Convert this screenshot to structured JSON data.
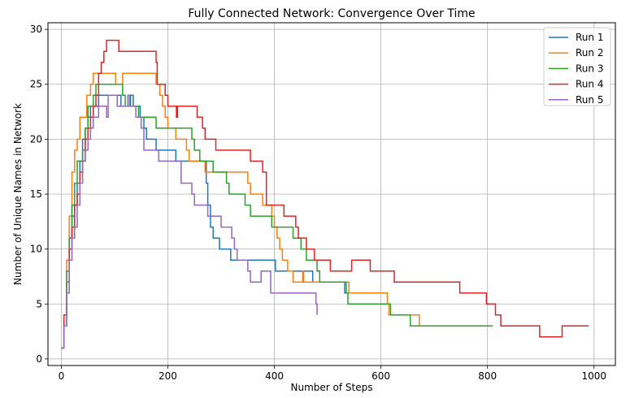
{
  "chart_data": {
    "type": "line",
    "title": "Fully Connected Network: Convergence Over Time",
    "xlabel": "Number of Steps",
    "ylabel": "Number of Unique Names in Network",
    "xlim": [
      -25,
      1040
    ],
    "ylim": [
      -0.6,
      30.6
    ],
    "xticks": [
      0,
      200,
      400,
      600,
      800,
      1000
    ],
    "yticks": [
      0,
      5,
      10,
      15,
      20,
      25,
      30
    ],
    "grid": true,
    "legend_position": "top-right",
    "series": [
      {
        "name": "Run 1",
        "color": "#1f77b4",
        "points": [
          [
            0,
            1
          ],
          [
            5,
            3
          ],
          [
            10,
            7
          ],
          [
            15,
            11
          ],
          [
            20,
            13
          ],
          [
            25,
            14
          ],
          [
            30,
            16
          ],
          [
            35,
            18
          ],
          [
            40,
            20
          ],
          [
            45,
            21
          ],
          [
            50,
            22
          ],
          [
            55,
            23
          ],
          [
            65,
            23
          ],
          [
            70,
            24
          ],
          [
            110,
            24
          ],
          [
            112,
            23
          ],
          [
            125,
            23
          ],
          [
            130,
            24
          ],
          [
            135,
            23
          ],
          [
            145,
            23
          ],
          [
            148,
            22
          ],
          [
            155,
            21
          ],
          [
            160,
            20
          ],
          [
            175,
            20
          ],
          [
            178,
            19
          ],
          [
            210,
            19
          ],
          [
            215,
            18
          ],
          [
            270,
            18
          ],
          [
            272,
            16
          ],
          [
            275,
            14
          ],
          [
            280,
            12
          ],
          [
            285,
            11
          ],
          [
            295,
            11
          ],
          [
            297,
            10
          ],
          [
            315,
            10
          ],
          [
            318,
            9
          ],
          [
            400,
            9
          ],
          [
            402,
            8
          ],
          [
            470,
            8
          ],
          [
            472,
            7
          ],
          [
            530,
            7
          ],
          [
            532,
            6
          ],
          [
            540,
            6
          ]
        ]
      },
      {
        "name": "Run 2",
        "color": "#ff7f0e",
        "points": [
          [
            0,
            1
          ],
          [
            5,
            4
          ],
          [
            10,
            9
          ],
          [
            15,
            13
          ],
          [
            20,
            17
          ],
          [
            25,
            19
          ],
          [
            30,
            20
          ],
          [
            35,
            22
          ],
          [
            45,
            22
          ],
          [
            48,
            24
          ],
          [
            55,
            25
          ],
          [
            60,
            26
          ],
          [
            100,
            26
          ],
          [
            102,
            25
          ],
          [
            110,
            25
          ],
          [
            115,
            26
          ],
          [
            175,
            26
          ],
          [
            178,
            25
          ],
          [
            185,
            24
          ],
          [
            190,
            23
          ],
          [
            195,
            22
          ],
          [
            200,
            21
          ],
          [
            210,
            21
          ],
          [
            215,
            20
          ],
          [
            230,
            20
          ],
          [
            235,
            19
          ],
          [
            240,
            18
          ],
          [
            265,
            18
          ],
          [
            270,
            17
          ],
          [
            300,
            17
          ],
          [
            305,
            17
          ],
          [
            345,
            17
          ],
          [
            350,
            16
          ],
          [
            355,
            15
          ],
          [
            375,
            15
          ],
          [
            378,
            14
          ],
          [
            390,
            14
          ],
          [
            395,
            13
          ],
          [
            400,
            12
          ],
          [
            405,
            11
          ],
          [
            410,
            10
          ],
          [
            415,
            9
          ],
          [
            420,
            9
          ],
          [
            425,
            8
          ],
          [
            430,
            8
          ],
          [
            435,
            7
          ],
          [
            450,
            7
          ],
          [
            453,
            8
          ],
          [
            455,
            7
          ],
          [
            535,
            7
          ],
          [
            540,
            6
          ],
          [
            610,
            6
          ],
          [
            612,
            5
          ],
          [
            615,
            4
          ],
          [
            670,
            4
          ],
          [
            672,
            3
          ],
          [
            690,
            3
          ]
        ]
      },
      {
        "name": "Run 3",
        "color": "#2ca02c",
        "points": [
          [
            0,
            1
          ],
          [
            5,
            4
          ],
          [
            10,
            8
          ],
          [
            15,
            11
          ],
          [
            20,
            14
          ],
          [
            25,
            16
          ],
          [
            30,
            18
          ],
          [
            40,
            19
          ],
          [
            45,
            21
          ],
          [
            50,
            23
          ],
          [
            60,
            24
          ],
          [
            65,
            25
          ],
          [
            110,
            25
          ],
          [
            115,
            24
          ],
          [
            120,
            23
          ],
          [
            140,
            23
          ],
          [
            145,
            22
          ],
          [
            175,
            22
          ],
          [
            178,
            21
          ],
          [
            240,
            21
          ],
          [
            245,
            20
          ],
          [
            250,
            19
          ],
          [
            260,
            18
          ],
          [
            280,
            18
          ],
          [
            285,
            17
          ],
          [
            305,
            17
          ],
          [
            310,
            16
          ],
          [
            315,
            15
          ],
          [
            340,
            15
          ],
          [
            345,
            14
          ],
          [
            355,
            13
          ],
          [
            390,
            13
          ],
          [
            395,
            12
          ],
          [
            430,
            12
          ],
          [
            435,
            11
          ],
          [
            445,
            11
          ],
          [
            450,
            10
          ],
          [
            460,
            9
          ],
          [
            480,
            8
          ],
          [
            485,
            7
          ],
          [
            530,
            7
          ],
          [
            535,
            6
          ],
          [
            538,
            5
          ],
          [
            615,
            5
          ],
          [
            618,
            4
          ],
          [
            650,
            4
          ],
          [
            655,
            3
          ],
          [
            810,
            3
          ]
        ]
      },
      {
        "name": "Run 4",
        "color": "#d62728",
        "points": [
          [
            0,
            1
          ],
          [
            5,
            4
          ],
          [
            10,
            6
          ],
          [
            15,
            10
          ],
          [
            20,
            12
          ],
          [
            25,
            14
          ],
          [
            30,
            15
          ],
          [
            35,
            17
          ],
          [
            40,
            18
          ],
          [
            45,
            20
          ],
          [
            50,
            21
          ],
          [
            55,
            22
          ],
          [
            60,
            23
          ],
          [
            65,
            24
          ],
          [
            70,
            26
          ],
          [
            75,
            27
          ],
          [
            80,
            28
          ],
          [
            85,
            29
          ],
          [
            105,
            29
          ],
          [
            108,
            28
          ],
          [
            175,
            28
          ],
          [
            178,
            27
          ],
          [
            180,
            25
          ],
          [
            190,
            25
          ],
          [
            195,
            24
          ],
          [
            200,
            23
          ],
          [
            215,
            23
          ],
          [
            216,
            22
          ],
          [
            218,
            23
          ],
          [
            250,
            23
          ],
          [
            255,
            22
          ],
          [
            265,
            21
          ],
          [
            270,
            20
          ],
          [
            285,
            20
          ],
          [
            290,
            19
          ],
          [
            350,
            19
          ],
          [
            355,
            18
          ],
          [
            375,
            18
          ],
          [
            378,
            17
          ],
          [
            385,
            14
          ],
          [
            415,
            14
          ],
          [
            418,
            13
          ],
          [
            435,
            13
          ],
          [
            440,
            12
          ],
          [
            445,
            11
          ],
          [
            455,
            11
          ],
          [
            460,
            10
          ],
          [
            470,
            10
          ],
          [
            475,
            9
          ],
          [
            500,
            9
          ],
          [
            505,
            8
          ],
          [
            540,
            8
          ],
          [
            545,
            9
          ],
          [
            575,
            9
          ],
          [
            580,
            8
          ],
          [
            620,
            8
          ],
          [
            625,
            7
          ],
          [
            745,
            7
          ],
          [
            748,
            6
          ],
          [
            795,
            6
          ],
          [
            798,
            5
          ],
          [
            810,
            5
          ],
          [
            815,
            4
          ],
          [
            820,
            4
          ],
          [
            825,
            3
          ],
          [
            895,
            3
          ],
          [
            898,
            2
          ],
          [
            935,
            2
          ],
          [
            940,
            3
          ],
          [
            990,
            3
          ]
        ]
      },
      {
        "name": "Run 5",
        "color": "#9467bd",
        "points": [
          [
            0,
            1
          ],
          [
            5,
            3
          ],
          [
            10,
            6
          ],
          [
            15,
            9
          ],
          [
            20,
            11
          ],
          [
            25,
            12
          ],
          [
            30,
            14
          ],
          [
            35,
            16
          ],
          [
            40,
            18
          ],
          [
            45,
            19
          ],
          [
            50,
            20
          ],
          [
            55,
            21
          ],
          [
            60,
            22
          ],
          [
            65,
            22
          ],
          [
            70,
            23
          ],
          [
            80,
            23
          ],
          [
            85,
            22
          ],
          [
            88,
            24
          ],
          [
            100,
            24
          ],
          [
            105,
            23
          ],
          [
            120,
            23
          ],
          [
            125,
            24
          ],
          [
            128,
            23
          ],
          [
            135,
            23
          ],
          [
            140,
            22
          ],
          [
            150,
            21
          ],
          [
            155,
            19
          ],
          [
            180,
            19
          ],
          [
            183,
            18
          ],
          [
            220,
            18
          ],
          [
            225,
            16
          ],
          [
            240,
            16
          ],
          [
            245,
            15
          ],
          [
            250,
            14
          ],
          [
            270,
            14
          ],
          [
            275,
            13
          ],
          [
            295,
            13
          ],
          [
            300,
            12
          ],
          [
            315,
            12
          ],
          [
            320,
            11
          ],
          [
            325,
            10
          ],
          [
            330,
            9
          ],
          [
            345,
            9
          ],
          [
            350,
            8
          ],
          [
            355,
            7
          ],
          [
            370,
            7
          ],
          [
            375,
            8
          ],
          [
            390,
            8
          ],
          [
            393,
            6
          ],
          [
            475,
            6
          ],
          [
            478,
            5
          ],
          [
            480,
            4
          ]
        ]
      }
    ]
  }
}
